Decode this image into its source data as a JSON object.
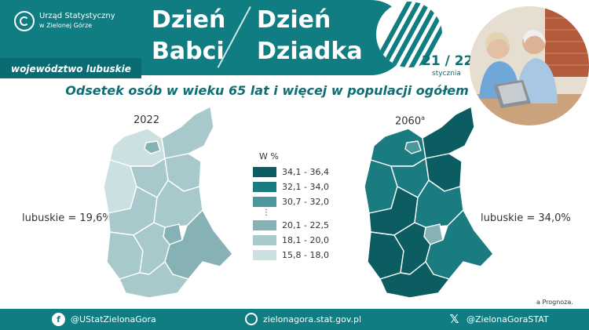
{
  "header": {
    "logo_line1": "Urząd Statystyczny",
    "logo_line2": "w Zielonej Górze",
    "region": "województwo lubuskie",
    "title_left_line1": "Dzień",
    "title_left_line2": "Babci",
    "title_right_line1": "Dzień",
    "title_right_line2": "Dziadka",
    "date_days": "21 / 22",
    "date_month": "stycznia"
  },
  "subtitle": "Odsetek osób w wieku 65 lat i więcej w populacji ogółem",
  "maps": [
    {
      "year": "2022",
      "stat": "lubuskie = 19,6%"
    },
    {
      "year": "2060",
      "year_note": "a",
      "stat": "lubuskie = 34,0%"
    }
  ],
  "legend": {
    "title": "W %",
    "items": [
      {
        "label": "34,1 - 36,4",
        "color": "#0b5d61"
      },
      {
        "label": "32,1 - 34,0",
        "color": "#1a7b80"
      },
      {
        "label": "30,7 - 32,0",
        "color": "#4b979b"
      },
      {
        "label": "20,1 - 22,5",
        "color": "#86b2b6"
      },
      {
        "label": "18,1 - 20,0",
        "color": "#a8c9cc"
      },
      {
        "label": "15,8 - 18,0",
        "color": "#ccdfe1"
      }
    ],
    "ellipsis": "⋮"
  },
  "footnote": "a Prognoza.",
  "footer": {
    "facebook": "@UStatZielonaGora",
    "website": "zielonagora.stat.gov.pl",
    "twitter": "@ZielonaGoraSTAT"
  },
  "colors": {
    "brand": "#0f7d81",
    "brand_dark": "#0a6b70"
  }
}
